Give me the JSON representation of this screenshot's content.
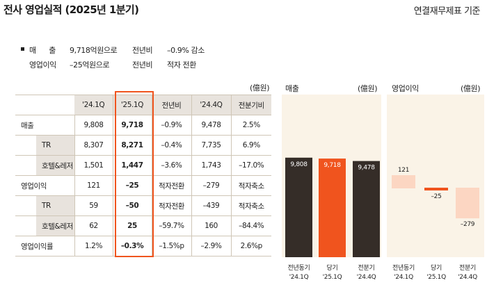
{
  "header": {
    "title": "전사 영업실적 (2025년 1분기)",
    "subtitle": "연결재무제표 기준"
  },
  "summary": [
    {
      "label": "매      출",
      "value": "9,718억원으로",
      "compare": "전년비",
      "change": "–0.9% 감소"
    },
    {
      "label": "영업이익",
      "value": "–25억원으로",
      "compare": "전년비",
      "change": "적자 전환"
    }
  ],
  "table": {
    "unit": "(億원)",
    "columns": [
      "'24.1Q",
      "'25.1Q",
      "전년비",
      "'24.4Q",
      "전분기비"
    ],
    "rows": [
      {
        "label": "매출",
        "sub": false,
        "cells": [
          "9,808",
          "9,718",
          "–0.9%",
          "9,478",
          "2.5%"
        ]
      },
      {
        "label": "TR",
        "sub": true,
        "cells": [
          "8,307",
          "8,271",
          "–0.4%",
          "7,735",
          "6.9%"
        ]
      },
      {
        "label": "호텔&레저",
        "sub": true,
        "cells": [
          "1,501",
          "1,447",
          "–3.6%",
          "1,743",
          "–17.0%"
        ]
      },
      {
        "label": "영업이익",
        "sub": false,
        "cells": [
          "121",
          "–25",
          "적자전환",
          "–279",
          "적자축소"
        ]
      },
      {
        "label": "TR",
        "sub": true,
        "cells": [
          "59",
          "–50",
          "적자전환",
          "–439",
          "적자축소"
        ]
      },
      {
        "label": "호텔&레저",
        "sub": true,
        "cells": [
          "62",
          "25",
          "–59.7%",
          "160",
          "–84.4%"
        ]
      },
      {
        "label": "영업이익률",
        "sub": false,
        "cells": [
          "1.2%",
          "–0.3%",
          "–1.5%p",
          "–2.9%",
          "2.6%p"
        ]
      }
    ]
  },
  "chart_data": [
    {
      "type": "bar",
      "title": "매출",
      "unit": "(億원)",
      "categories": [
        "전년동기\n'24.1Q",
        "당기\n'25.1Q",
        "전분기\n'24.4Q"
      ],
      "values": [
        9808,
        9718,
        9478
      ],
      "value_labels": [
        "9,808",
        "9,718",
        "9,478"
      ],
      "colors": [
        "#352d28",
        "#f0541e",
        "#352d28"
      ],
      "label_colors": [
        "#ffffff",
        "#ffffff",
        "#ffffff"
      ]
    },
    {
      "type": "bar",
      "title": "영업이익",
      "unit": "(億원)",
      "categories": [
        "전년동기\n'24.1Q",
        "당기\n'25.1Q",
        "전분기\n'24.4Q"
      ],
      "values": [
        121,
        -25,
        -279
      ],
      "value_labels": [
        "121",
        "–25",
        "–279"
      ],
      "colors": [
        "#fcd6c2",
        "#f0541e",
        "#fcd6c2"
      ],
      "label_colors": [
        "#222222",
        "#222222",
        "#222222"
      ]
    }
  ]
}
